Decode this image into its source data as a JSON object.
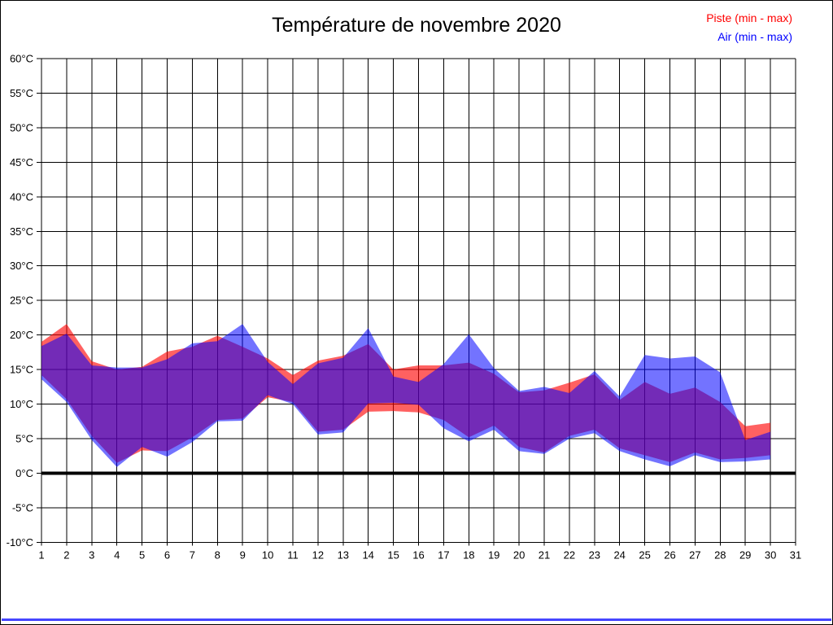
{
  "page": {
    "border_color": "#000000",
    "bottom_line_color": "#4545ff"
  },
  "chart_data": {
    "type": "area",
    "title": "Température de novembre 2020",
    "xlabel": "",
    "ylabel": "",
    "xlim": [
      1,
      31
    ],
    "ylim": [
      -10,
      60
    ],
    "grid": true,
    "grid_color": "#000000",
    "background": "#ffffff",
    "legend_position": "top-right",
    "zero_line": {
      "value": 0,
      "width": 4,
      "color": "#000000"
    },
    "x_tick_values": [
      1,
      2,
      3,
      4,
      5,
      6,
      7,
      8,
      9,
      10,
      11,
      12,
      13,
      14,
      15,
      16,
      17,
      18,
      19,
      20,
      21,
      22,
      23,
      24,
      25,
      26,
      27,
      28,
      29,
      30,
      31
    ],
    "x_tick_labels": [
      "1",
      "2",
      "3",
      "4",
      "5",
      "6",
      "7",
      "8",
      "9",
      "10",
      "11",
      "12",
      "13",
      "14",
      "15",
      "16",
      "17",
      "18",
      "19",
      "20",
      "21",
      "22",
      "23",
      "24",
      "25",
      "26",
      "27",
      "28",
      "29",
      "30",
      "31"
    ],
    "y_tick_values": [
      60,
      55,
      50,
      45,
      40,
      35,
      30,
      25,
      20,
      15,
      10,
      5,
      0,
      -5,
      -10
    ],
    "y_tick_labels": [
      "60°C",
      "55°C",
      "50°C",
      "45°C",
      "40°C",
      "35°C",
      "30°C",
      "25°C",
      "20°C",
      "15°C",
      "10°C",
      "5°C",
      "0°C",
      "-5°C",
      "-10°C"
    ],
    "x": [
      1,
      2,
      3,
      4,
      5,
      6,
      7,
      8,
      9,
      10,
      11,
      12,
      13,
      14,
      15,
      16,
      17,
      18,
      19,
      20,
      21,
      22,
      23,
      24,
      25,
      26,
      27,
      28,
      29,
      30
    ],
    "series": [
      {
        "name": "Piste (min - max)",
        "color": "#ff0000",
        "fill_opacity": 0.62,
        "min": [
          14.2,
          10.7,
          5.4,
          1.5,
          3.3,
          3.2,
          5.2,
          7.7,
          7.9,
          11.0,
          10.3,
          6.0,
          6.3,
          8.9,
          9.0,
          8.8,
          7.7,
          5.2,
          6.9,
          3.8,
          3.0,
          5.4,
          6.3,
          3.6,
          2.6,
          1.6,
          3.0,
          2.0,
          2.2,
          2.6
        ],
        "max": [
          19.0,
          21.6,
          16.2,
          15.0,
          15.4,
          17.6,
          18.3,
          19.9,
          18.3,
          16.6,
          14.2,
          16.3,
          17.0,
          18.7,
          15.0,
          15.6,
          15.6,
          16.0,
          14.4,
          11.7,
          12.0,
          13.1,
          14.3,
          10.6,
          13.2,
          11.5,
          12.4,
          10.3,
          6.8,
          7.3
        ]
      },
      {
        "name": "Air (min - max)",
        "color": "#0000ff",
        "fill_opacity": 0.55,
        "min": [
          13.6,
          10.3,
          4.8,
          0.9,
          3.8,
          2.4,
          4.5,
          7.5,
          7.6,
          11.3,
          10.0,
          5.6,
          5.9,
          10.1,
          10.2,
          9.9,
          6.5,
          4.6,
          6.3,
          3.2,
          2.8,
          5.0,
          5.8,
          3.2,
          2.0,
          1.0,
          2.6,
          1.6,
          1.7,
          2.0
        ],
        "max": [
          18.4,
          20.2,
          15.6,
          15.3,
          15.3,
          16.5,
          18.8,
          19.1,
          21.6,
          16.1,
          12.9,
          15.9,
          16.7,
          21.0,
          14.0,
          13.2,
          15.8,
          20.1,
          15.2,
          11.9,
          12.5,
          11.6,
          14.8,
          11.1,
          17.1,
          16.6,
          16.9,
          14.6,
          4.8,
          6.0
        ]
      }
    ]
  }
}
